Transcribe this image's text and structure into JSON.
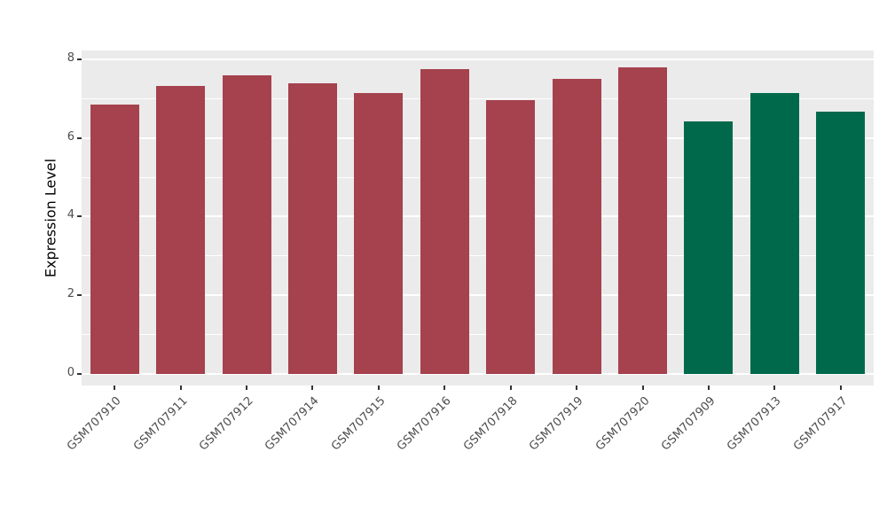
{
  "figure": {
    "background": "#FFFFFF"
  },
  "chart_data": {
    "type": "bar",
    "title": "",
    "xlabel": "",
    "ylabel": "Expression Level",
    "ylim": [
      0,
      8
    ],
    "yticks": [
      "0",
      "2",
      "4",
      "6",
      "8"
    ],
    "ytick_values": [
      0,
      2,
      4,
      6,
      8
    ],
    "minor_tick_values": [
      1,
      3,
      5,
      7
    ],
    "grid": true,
    "legend": "none",
    "panel_bg": "#EBEBEB",
    "grid_color": "#FFFFFF",
    "axis_text_color": "#4D4D4D",
    "group_colors": {
      "group1": "#A5424E",
      "group2": "#00694C"
    },
    "categories": [
      "GSM707910",
      "GSM707911",
      "GSM707912",
      "GSM707914",
      "GSM707915",
      "GSM707916",
      "GSM707918",
      "GSM707919",
      "GSM707920",
      "GSM707909",
      "GSM707913",
      "GSM707917"
    ],
    "values": [
      6.84,
      7.33,
      7.58,
      7.39,
      7.15,
      7.74,
      6.96,
      7.5,
      7.8,
      6.43,
      7.15,
      6.66
    ],
    "bar_colors": [
      "#A5424E",
      "#A5424E",
      "#A5424E",
      "#A5424E",
      "#A5424E",
      "#A5424E",
      "#A5424E",
      "#A5424E",
      "#A5424E",
      "#00694C",
      "#00694C",
      "#00694C"
    ]
  }
}
